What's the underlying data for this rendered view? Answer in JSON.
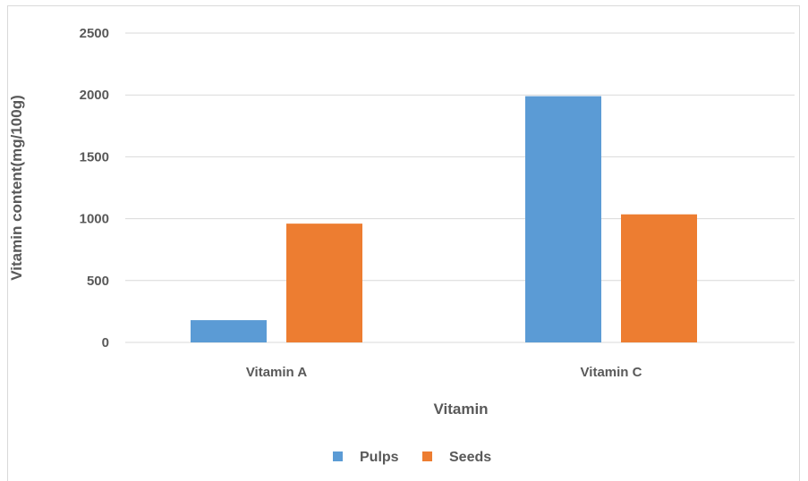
{
  "chart_data": {
    "type": "bar",
    "categories": [
      "Vitamin A",
      "Vitamin C"
    ],
    "series": [
      {
        "name": "Pulps",
        "color": "#5b9bd5",
        "values": [
          180,
          1990
        ]
      },
      {
        "name": "Seeds",
        "color": "#ed7d31",
        "values": [
          960,
          1035
        ]
      }
    ],
    "xlabel": "Vitamin",
    "ylabel": "Vitamin content(mg/100g)",
    "ylim": [
      0,
      2500
    ],
    "yticks": [
      0,
      500,
      1000,
      1500,
      2000,
      2500
    ],
    "grid": true,
    "legend_position": "bottom"
  }
}
